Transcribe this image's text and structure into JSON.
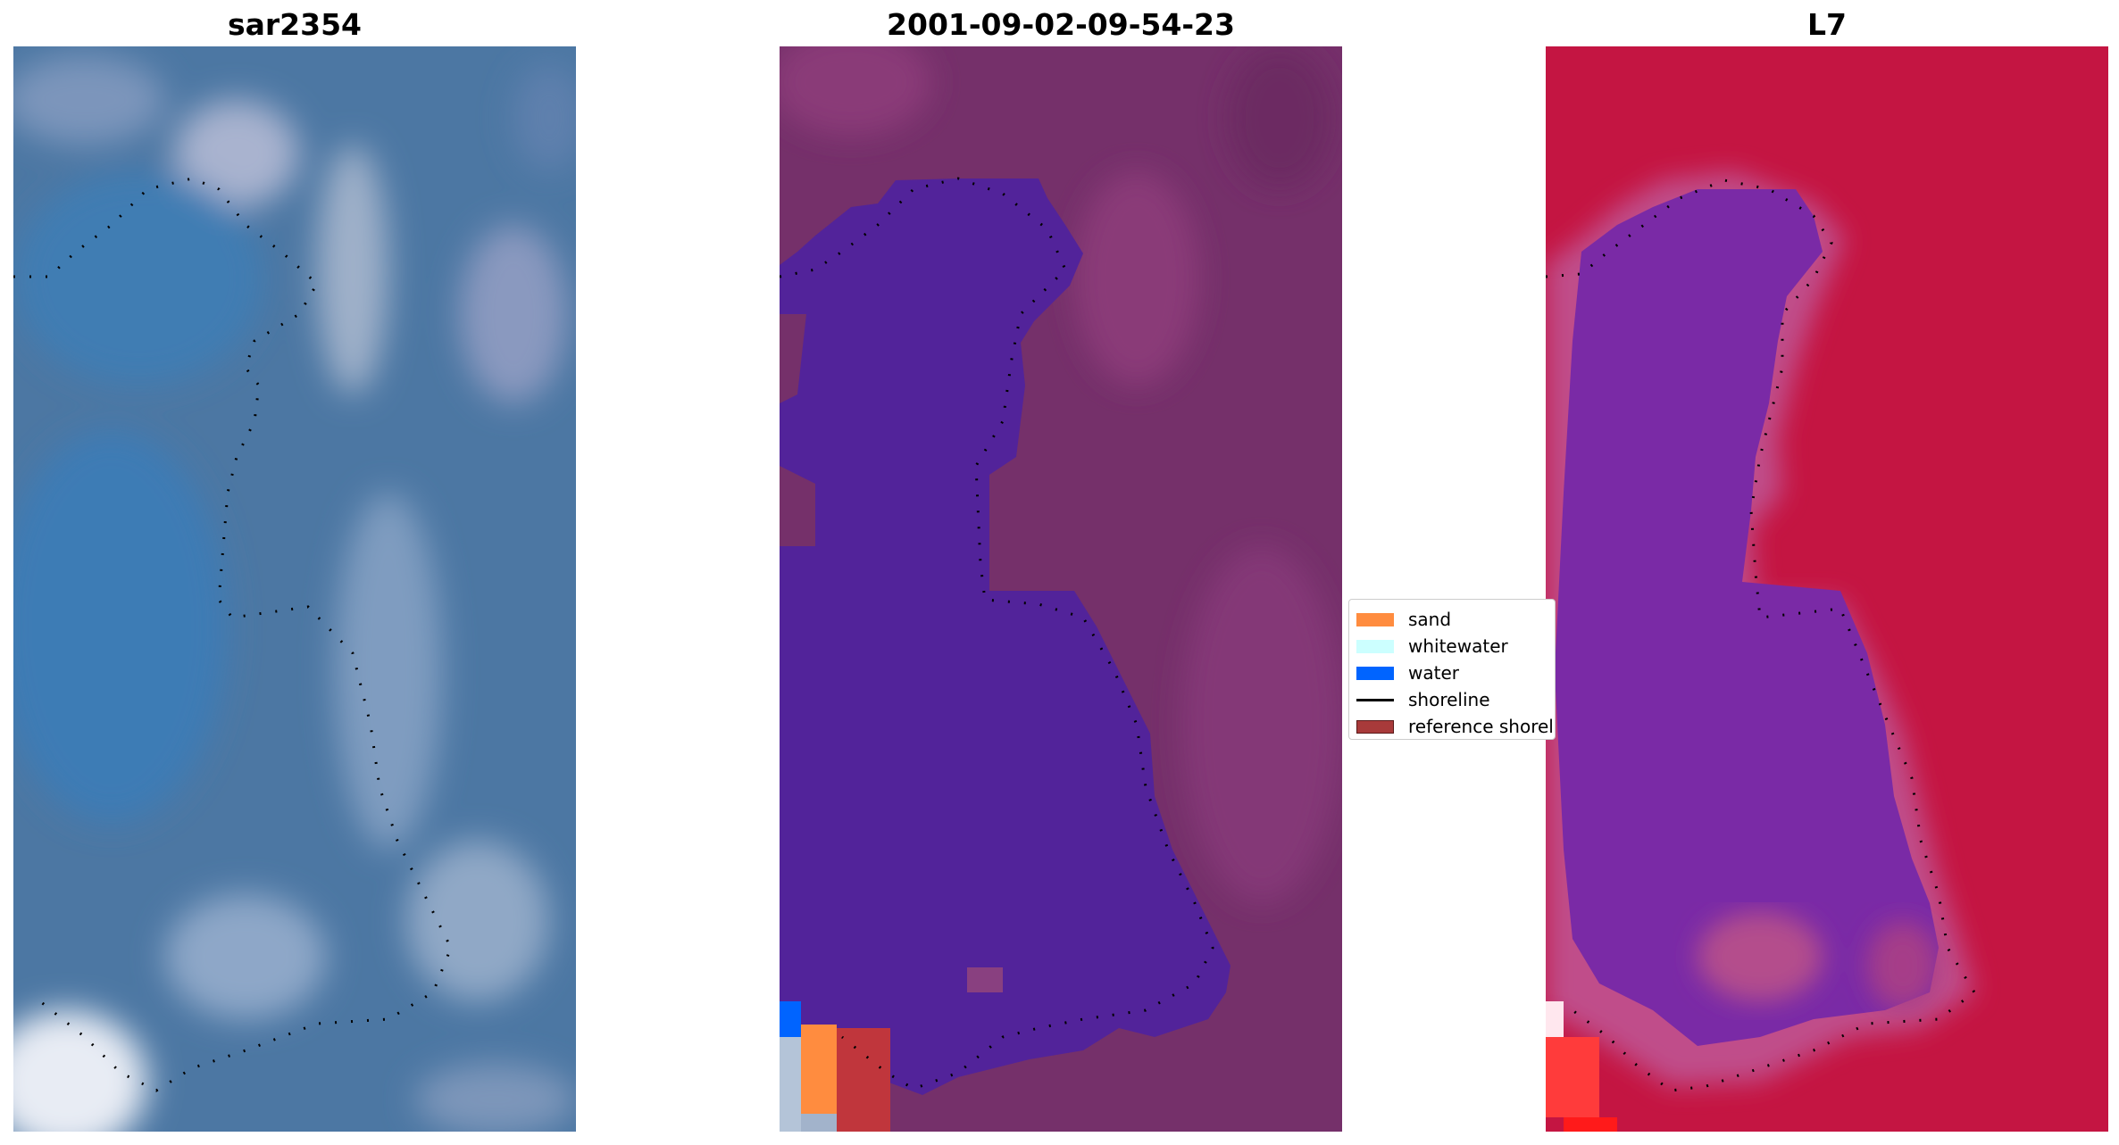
{
  "panels": [
    {
      "title": "sar2354",
      "image": "true-color satellite image"
    },
    {
      "title": "2001-09-02-09-54-23",
      "image": "classified image"
    },
    {
      "title": "L7",
      "image": "index image"
    }
  ],
  "legend": {
    "items": [
      {
        "label": "sand",
        "color": "#ff8c3f",
        "kind": "patch"
      },
      {
        "label": "whitewater",
        "color": "#ccffff",
        "kind": "patch"
      },
      {
        "label": "water",
        "color": "#0064ff",
        "kind": "patch"
      },
      {
        "label": "shoreline",
        "color": "#000000",
        "kind": "line"
      },
      {
        "label": "reference shoreline",
        "color": "#a83a3a",
        "kind": "patch"
      }
    ]
  },
  "colors": {
    "rgb_base": "#4a78a4",
    "class_land": "#7a2e6c",
    "class_water": "#52229a",
    "index_land": "#c8123f",
    "index_water": "#7a28a8"
  }
}
